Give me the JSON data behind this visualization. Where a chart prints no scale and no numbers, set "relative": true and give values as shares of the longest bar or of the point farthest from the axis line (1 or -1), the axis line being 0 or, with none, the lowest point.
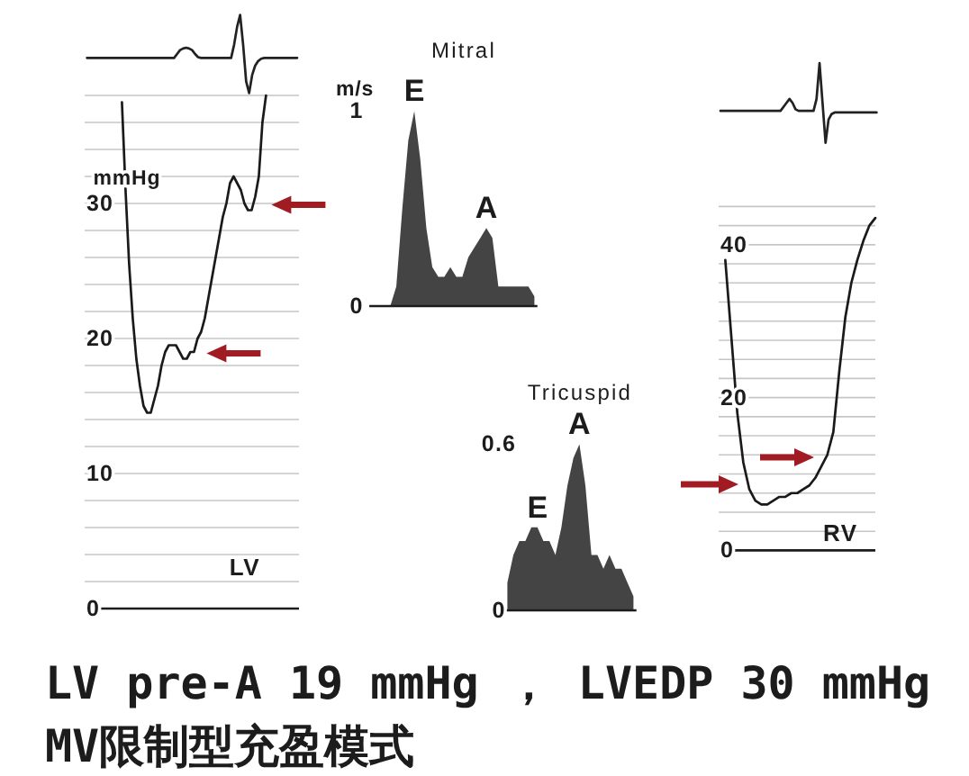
{
  "chart_data": [
    {
      "type": "line",
      "relative": true,
      "color": "#222222",
      "categories": [
        null,
        null,
        null,
        null,
        null,
        null,
        null,
        null,
        null,
        null,
        null,
        null,
        null,
        null,
        null,
        null,
        null,
        null,
        null,
        null,
        null,
        null,
        null,
        null,
        null,
        null,
        null,
        null,
        null,
        null,
        null,
        null,
        null,
        null,
        null,
        null,
        null,
        null,
        null,
        null,
        null,
        null,
        null,
        null,
        null,
        null,
        null,
        null,
        null,
        null,
        null,
        null,
        null,
        null,
        null,
        null,
        null,
        null,
        null,
        null,
        null,
        null,
        null,
        null,
        null,
        null,
        null,
        null,
        null,
        null,
        null
      ],
      "values": [
        0.45,
        0.45,
        0.45,
        0.45,
        0.45,
        0.45,
        0.45,
        0.45,
        0.45,
        0.45,
        0.45,
        0.45,
        0.45,
        0.45,
        0.45,
        0.45,
        0.45,
        0.45,
        0.45,
        0.45,
        0.45,
        0.45,
        0.45,
        0.45,
        0.45,
        0.45,
        0.45,
        0.45,
        0.45,
        0.45,
        0.5,
        0.55,
        0.57,
        0.58,
        0.57,
        0.55,
        0.5,
        0.46,
        0.45,
        0.45,
        0.45,
        0.45,
        0.45,
        0.45,
        0.45,
        0.45,
        0.45,
        0.45,
        0.45,
        0.62,
        0.85,
        1,
        0.62,
        0.15,
        0,
        0.23,
        0.35,
        0.41,
        0.44,
        0.45,
        0.45,
        0.45,
        0.45,
        0.45,
        0.45,
        0.45,
        0.45,
        0.45,
        0.45,
        0.45,
        0.45
      ]
    },
    {
      "type": "line",
      "ylabel": "mmHg",
      "color": "#1a1a1a",
      "grid": "y",
      "annotations": [
        "LV"
      ],
      "categories": [
        null,
        null,
        null,
        null,
        null,
        null,
        null,
        null,
        null,
        null,
        null,
        null,
        null,
        null,
        null,
        null,
        null,
        null,
        null,
        null,
        null,
        null,
        null,
        null,
        null,
        null,
        null,
        null,
        null,
        null,
        null,
        null,
        null,
        null,
        null,
        null,
        null,
        null,
        null,
        null,
        null
      ],
      "values": [
        37.5,
        31,
        25.5,
        21.5,
        18.5,
        16.5,
        15,
        14.5,
        14.5,
        15.5,
        16.5,
        18,
        19,
        19.5,
        19.5,
        19.5,
        19,
        18.5,
        18.5,
        19,
        19,
        20,
        20.5,
        21.5,
        23,
        24.5,
        26,
        27.5,
        29,
        30,
        31.5,
        32,
        31.5,
        31,
        30,
        29.5,
        29.5,
        30.5,
        32,
        36,
        38
      ],
      "ylim": [
        0,
        38
      ],
      "yticks": [
        0,
        {
          "value": 2,
          "label": null
        },
        {
          "value": 4,
          "label": null
        },
        {
          "value": 6,
          "label": null
        },
        {
          "value": 8,
          "label": null
        },
        10,
        {
          "value": 12,
          "label": null
        },
        {
          "value": 14,
          "label": null
        },
        {
          "value": 16,
          "label": null
        },
        {
          "value": 18,
          "label": null
        },
        20,
        {
          "value": 22,
          "label": null
        },
        {
          "value": 24,
          "label": null
        },
        {
          "value": 26,
          "label": null
        },
        {
          "value": 28,
          "label": null
        },
        30,
        {
          "value": 32,
          "label": null
        },
        {
          "value": 34,
          "label": null
        },
        {
          "value": 36,
          "label": null
        },
        {
          "value": 38,
          "label": null
        }
      ]
    },
    {
      "type": "area",
      "title": "Mitral",
      "ylabel": "m/s",
      "color": "#2a2a2a",
      "categories": [
        null,
        null,
        null,
        null,
        null,
        null,
        null,
        null,
        null,
        null,
        null,
        null,
        null,
        null,
        null,
        null,
        null,
        null,
        null,
        null,
        null,
        null,
        null,
        null,
        null,
        null,
        null,
        null
      ],
      "values": [
        0,
        0,
        0,
        0,
        0.1,
        0.5,
        0.85,
        1,
        0.75,
        0.4,
        0.2,
        0.15,
        0.15,
        0.2,
        0.15,
        0.15,
        0.25,
        0.3,
        0.35,
        0.4,
        0.35,
        0.1,
        0.1,
        0.1,
        0.1,
        0.1,
        0.1,
        0.05
      ],
      "ylim": [
        0,
        1
      ],
      "yticks": [
        0,
        1
      ],
      "annotations": [
        {
          "text": "E",
          "y": 1
        },
        {
          "text": "A",
          "y": 0.4
        }
      ]
    },
    {
      "type": "area",
      "title": "Tricuspid",
      "color": "#2a2a2a",
      "categories": [
        null,
        null,
        null,
        null,
        null,
        null,
        null,
        null,
        null,
        null,
        null,
        null,
        null,
        null,
        null,
        null,
        null,
        null,
        null,
        null,
        null,
        null
      ],
      "values": [
        0.1,
        0.2,
        0.25,
        0.25,
        0.3,
        0.3,
        0.25,
        0.25,
        0.2,
        0.3,
        0.45,
        0.55,
        0.6,
        0.45,
        0.2,
        0.2,
        0.15,
        0.2,
        0.15,
        0.15,
        0.1,
        0.05
      ],
      "ylim": [
        0,
        0.6
      ],
      "yticks": [
        0,
        0.6
      ],
      "annotations": [
        {
          "text": "E",
          "y": 0.3
        },
        {
          "text": "A",
          "y": 0.6
        }
      ]
    },
    {
      "type": "line",
      "relative": true,
      "color": "#222222",
      "categories": [
        null,
        null,
        null,
        null,
        null,
        null,
        null,
        null,
        null,
        null,
        null,
        null,
        null,
        null,
        null,
        null,
        null,
        null,
        null,
        null,
        null,
        null,
        null,
        null,
        null,
        null,
        null,
        null,
        null,
        null,
        null,
        null,
        null,
        null,
        null,
        null,
        null,
        null,
        null,
        null,
        null,
        null,
        null,
        null,
        null,
        null,
        null,
        null,
        null,
        null,
        null,
        null,
        null
      ],
      "values": [
        0.4,
        0.4,
        0.4,
        0.4,
        0.4,
        0.4,
        0.4,
        0.4,
        0.4,
        0.4,
        0.4,
        0.4,
        0.4,
        0.4,
        0.4,
        0.4,
        0.4,
        0.4,
        0.4,
        0.4,
        0.4,
        0.45,
        0.5,
        0.55,
        0.5,
        0.42,
        0.4,
        0.4,
        0.4,
        0.4,
        0.4,
        0.4,
        0.55,
        1,
        0.5,
        0,
        0.29,
        0.36,
        0.38,
        0.38,
        0.38,
        0.38,
        0.38,
        0.38,
        0.38,
        0.38,
        0.38,
        0.38,
        0.38,
        0.38,
        0.38,
        0.38,
        0.38
      ]
    },
    {
      "type": "line",
      "color": "#1a1a1a",
      "grid": "y",
      "annotations": [
        "RV"
      ],
      "categories": [
        null,
        null,
        null,
        null,
        null,
        null,
        null,
        null,
        null,
        null,
        null,
        null,
        null,
        null,
        null,
        null,
        null,
        null,
        null,
        null,
        null,
        null,
        null,
        null,
        null,
        null
      ],
      "values": [
        38,
        28,
        18,
        11.5,
        8,
        6.5,
        6,
        6,
        6.5,
        7,
        7,
        7.5,
        7.5,
        8,
        8.5,
        9.5,
        11,
        12.5,
        15.5,
        23.5,
        30.5,
        35,
        38,
        40.5,
        42.5,
        43.5
      ],
      "ylim": [
        0,
        45
      ],
      "yticks": [
        0,
        {
          "value": 2.5,
          "label": null
        },
        {
          "value": 5,
          "label": null
        },
        {
          "value": 7.5,
          "label": null
        },
        {
          "value": 10,
          "label": null
        },
        {
          "value": 12.5,
          "label": null
        },
        {
          "value": 15,
          "label": null
        },
        {
          "value": 17.5,
          "label": null
        },
        20,
        {
          "value": 22.5,
          "label": null
        },
        {
          "value": 25,
          "label": null
        },
        {
          "value": 27.5,
          "label": null
        },
        {
          "value": 30,
          "label": null
        },
        {
          "value": 32.5,
          "label": null
        },
        {
          "value": 35,
          "label": null
        },
        {
          "value": 37.5,
          "label": null
        },
        40,
        {
          "value": 42.5,
          "label": null
        },
        {
          "value": 45,
          "label": null
        }
      ]
    },
    {
      "type": "other",
      "annotations": [
        "LV pre-A 19 mmHg ， LVEDP 30 mmHg",
        "MV限制型充盈模式"
      ]
    }
  ]
}
